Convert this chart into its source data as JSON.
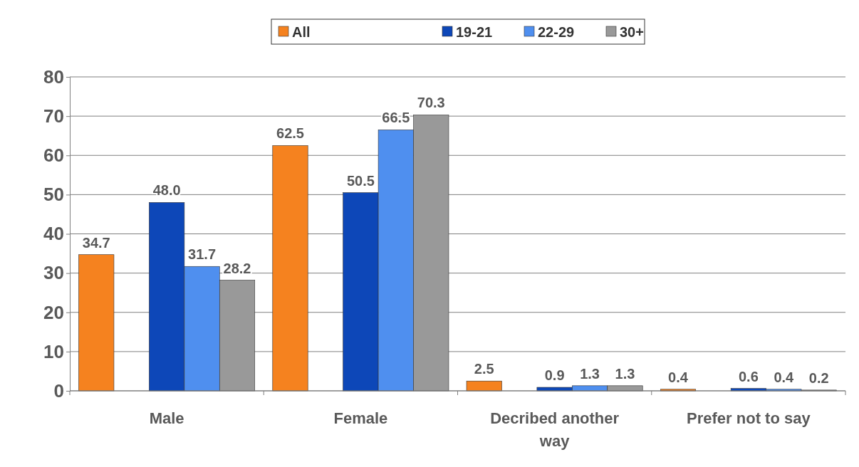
{
  "chart_data": {
    "type": "bar",
    "categories": [
      "Male",
      "Female",
      "Decribed another way",
      "Prefer not to say"
    ],
    "series": [
      {
        "name": "All",
        "color": "#f5821f",
        "values": [
          34.7,
          62.5,
          2.5,
          0.4
        ],
        "value_labels": [
          "34.7",
          "62.5",
          "2.5",
          "0.4"
        ]
      },
      {
        "values": [
          null,
          null,
          null,
          null
        ]
      },
      {
        "name": "19-21",
        "color": "#0d47b8",
        "values": [
          48.0,
          50.5,
          0.9,
          0.6
        ],
        "value_labels": [
          "48.0",
          "50.5",
          "0.9",
          "0.6"
        ]
      },
      {
        "name": "22-29",
        "color": "#4f8fef",
        "values": [
          31.7,
          66.5,
          1.3,
          0.4
        ],
        "value_labels": [
          "31.7",
          "66.5",
          "1.3",
          "0.4"
        ]
      },
      {
        "name": "30+",
        "color": "#999999",
        "values": [
          28.2,
          70.3,
          1.3,
          0.2
        ],
        "value_labels": [
          "28.2",
          "70.3",
          "1.3",
          "0.2"
        ]
      }
    ],
    "ylim": [
      0,
      80
    ],
    "yticks": [
      0,
      10,
      20,
      30,
      40,
      50,
      60,
      70,
      80
    ],
    "grid": "y",
    "legend": "top"
  }
}
